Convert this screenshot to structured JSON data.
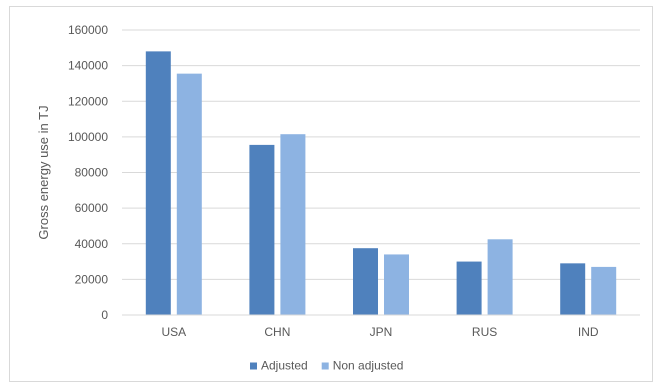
{
  "chart_data": {
    "type": "bar",
    "title": "",
    "xlabel": "",
    "ylabel": "Gross energy use in TJ",
    "ylim": [
      0,
      160000
    ],
    "yticks": [
      "0",
      "20000",
      "40000",
      "60000",
      "80000",
      "100000",
      "120000",
      "140000",
      "160000"
    ],
    "categories": [
      "USA",
      "CHN",
      "JPN",
      "RUS",
      "IND"
    ],
    "series": [
      {
        "name": "Adjusted",
        "color": "#4f81bd",
        "values": [
          148000,
          95500,
          37500,
          30000,
          29000
        ]
      },
      {
        "name": "Non adjusted",
        "color": "#8db3e2",
        "values": [
          135500,
          101500,
          34000,
          42500,
          27000
        ]
      }
    ],
    "grid": true,
    "legend_position": "bottom"
  }
}
